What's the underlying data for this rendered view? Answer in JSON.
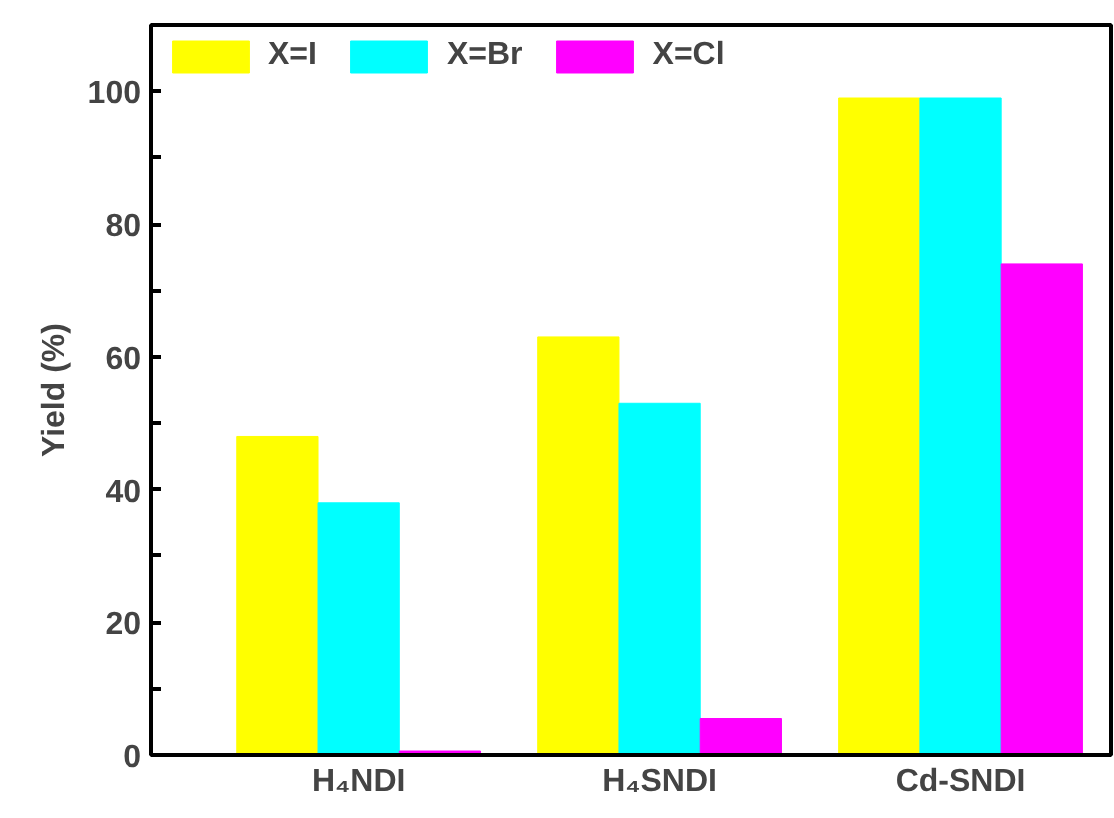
{
  "chart_data": {
    "type": "bar",
    "ylabel": "Yield (%)",
    "categories": [
      "H₄NDI",
      "H₄SNDI",
      "Cd-SNDI"
    ],
    "series": [
      {
        "name": "X=I",
        "color": "#ffff00",
        "values": [
          48,
          63,
          99
        ]
      },
      {
        "name": "X=Br",
        "color": "#00ffff",
        "values": [
          38,
          53,
          99
        ]
      },
      {
        "name": "X=Cl",
        "color": "#ff00ff",
        "values": [
          0.6,
          5.5,
          74
        ]
      }
    ],
    "ylim": [
      0,
      110
    ],
    "yticks": [
      0,
      {
        "value": 10,
        "label": null
      },
      20,
      {
        "value": 30,
        "label": null
      },
      40,
      {
        "value": 50,
        "label": null
      },
      60,
      {
        "value": 70,
        "label": null
      },
      80,
      {
        "value": 90,
        "label": null
      },
      100
    ],
    "grid": false,
    "legend": "top left"
  }
}
